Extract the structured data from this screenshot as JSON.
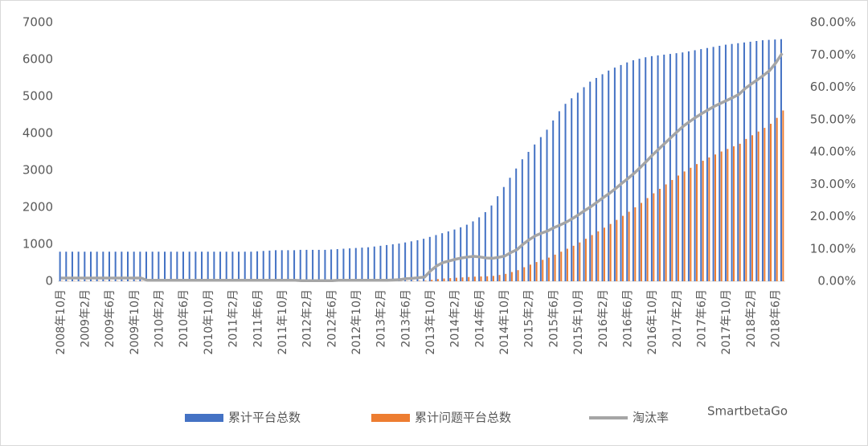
{
  "chart_data": {
    "type": "bar-line",
    "categories": [
      "2008年10月",
      null,
      null,
      null,
      "2009年2月",
      null,
      null,
      null,
      "2009年6月",
      null,
      null,
      null,
      "2009年10月",
      null,
      null,
      null,
      "2010年2月",
      null,
      null,
      null,
      "2010年6月",
      null,
      null,
      null,
      "2010年10月",
      null,
      null,
      null,
      "2011年2月",
      null,
      null,
      null,
      "2011年6月",
      null,
      null,
      null,
      "2011年10月",
      null,
      null,
      null,
      "2012年2月",
      null,
      null,
      null,
      "2012年6月",
      null,
      null,
      null,
      "2012年10月",
      null,
      null,
      null,
      "2013年2月",
      null,
      null,
      null,
      "2013年6月",
      null,
      null,
      null,
      "2013年10月",
      null,
      null,
      null,
      "2014年2月",
      null,
      null,
      null,
      "2014年6月",
      null,
      null,
      null,
      "2014年10月",
      null,
      null,
      null,
      "2015年2月",
      null,
      null,
      null,
      "2015年6月",
      null,
      null,
      null,
      "2015年10月",
      null,
      null,
      null,
      "2016年2月",
      null,
      null,
      null,
      "2016年6月",
      null,
      null,
      null,
      "2016年10月",
      null,
      null,
      null,
      "2017年2月",
      null,
      null,
      null,
      "2017年6月",
      null,
      null,
      null,
      "2017年10月",
      null,
      null,
      null,
      "2018年2月",
      null,
      null,
      null,
      "2018年6月",
      null
    ],
    "series": [
      {
        "name": "累计平台总数",
        "color": "#4472c4",
        "values": [
          800,
          800,
          800,
          800,
          800,
          800,
          800,
          800,
          800,
          800,
          800,
          800,
          800,
          800,
          800,
          800,
          800,
          800,
          800,
          800,
          800,
          800,
          800,
          800,
          800,
          800,
          800,
          800,
          800,
          800,
          800,
          800,
          810,
          820,
          830,
          840,
          840,
          840,
          840,
          850,
          850,
          850,
          850,
          850,
          860,
          870,
          880,
          890,
          900,
          910,
          920,
          940,
          960,
          980,
          1000,
          1020,
          1050,
          1080,
          1110,
          1150,
          1200,
          1250,
          1300,
          1350,
          1400,
          1460,
          1530,
          1620,
          1730,
          1870,
          2050,
          2300,
          2550,
          2800,
          3050,
          3300,
          3500,
          3700,
          3900,
          4100,
          4350,
          4600,
          4800,
          4950,
          5100,
          5250,
          5400,
          5500,
          5600,
          5700,
          5780,
          5850,
          5920,
          5980,
          6020,
          6060,
          6090,
          6110,
          6130,
          6150,
          6170,
          6190,
          6220,
          6250,
          6280,
          6310,
          6340,
          6370,
          6400,
          6420,
          6440,
          6460,
          6480,
          6500,
          6520,
          6530,
          6540,
          6550
        ]
      },
      {
        "name": "累计问题平台总数",
        "color": "#ed7d31",
        "values": [
          8,
          8,
          8,
          8,
          8,
          8,
          8,
          8,
          8,
          8,
          8,
          8,
          8,
          8,
          2,
          2,
          2,
          2,
          2,
          2,
          2,
          2,
          2,
          2,
          2,
          2,
          2,
          2,
          2,
          2,
          2,
          2,
          2,
          2,
          2,
          2,
          2,
          2,
          2,
          2,
          2,
          2,
          2,
          2,
          2,
          3,
          3,
          3,
          3,
          3,
          3,
          3,
          3,
          3,
          4,
          5,
          8,
          10,
          12,
          15,
          40,
          60,
          75,
          85,
          95,
          105,
          115,
          125,
          130,
          135,
          145,
          170,
          200,
          250,
          300,
          380,
          450,
          520,
          580,
          640,
          720,
          800,
          880,
          960,
          1050,
          1150,
          1250,
          1350,
          1450,
          1550,
          1660,
          1770,
          1880,
          2000,
          2120,
          2250,
          2380,
          2500,
          2620,
          2740,
          2860,
          2970,
          3070,
          3170,
          3260,
          3350,
          3430,
          3510,
          3580,
          3650,
          3720,
          3850,
          3950,
          4050,
          4150,
          4260,
          4420,
          4620
        ]
      },
      {
        "name": "淘汰率",
        "color": "#a5a5a5",
        "axis": "y2",
        "values": [
          1.0,
          1.0,
          1.0,
          1.0,
          1.0,
          1.0,
          1.0,
          1.0,
          1.0,
          1.0,
          1.0,
          1.0,
          1.0,
          1.0,
          0.3,
          0.3,
          0.3,
          0.3,
          0.3,
          0.3,
          0.3,
          0.3,
          0.3,
          0.3,
          0.3,
          0.3,
          0.3,
          0.3,
          0.3,
          0.3,
          0.3,
          0.3,
          0.3,
          0.3,
          0.3,
          0.3,
          0.3,
          0.3,
          0.3,
          0.2,
          0.2,
          0.2,
          0.2,
          0.2,
          0.2,
          0.3,
          0.3,
          0.3,
          0.3,
          0.3,
          0.3,
          0.3,
          0.3,
          0.3,
          0.4,
          0.5,
          0.8,
          0.9,
          1.1,
          1.3,
          3.3,
          4.8,
          5.8,
          6.3,
          6.8,
          7.2,
          7.5,
          7.7,
          7.5,
          7.2,
          7.1,
          7.4,
          7.8,
          8.9,
          9.8,
          11.5,
          12.9,
          14.1,
          14.9,
          15.6,
          16.6,
          17.4,
          18.3,
          19.4,
          20.6,
          21.9,
          23.1,
          24.5,
          25.9,
          27.2,
          28.7,
          30.3,
          31.8,
          33.4,
          35.2,
          37.1,
          39.1,
          40.9,
          42.7,
          44.5,
          46.3,
          48.0,
          49.4,
          50.7,
          51.9,
          53.0,
          54.1,
          55.0,
          55.9,
          56.8,
          57.8,
          59.6,
          61.0,
          62.3,
          63.7,
          65.2,
          67.6,
          70.5
        ]
      }
    ],
    "ylim": [
      0,
      7000
    ],
    "yticks": [
      0,
      1000,
      2000,
      3000,
      4000,
      5000,
      6000,
      7000
    ],
    "y2lim": [
      0,
      80
    ],
    "y2ticks": [
      {
        "value": 0,
        "label": "0.00%"
      },
      {
        "value": 10,
        "label": "10.00%"
      },
      {
        "value": 20,
        "label": "20.00%"
      },
      {
        "value": 30,
        "label": "30.00%"
      },
      {
        "value": 40,
        "label": "40.00%"
      },
      {
        "value": 50,
        "label": "50.00%"
      },
      {
        "value": 60,
        "label": "60.00%"
      },
      {
        "value": 70,
        "label": "70.00%"
      },
      {
        "value": 80,
        "label": "80.00%"
      }
    ],
    "legend": "bottom",
    "watermark": "SmartbetaGo"
  }
}
